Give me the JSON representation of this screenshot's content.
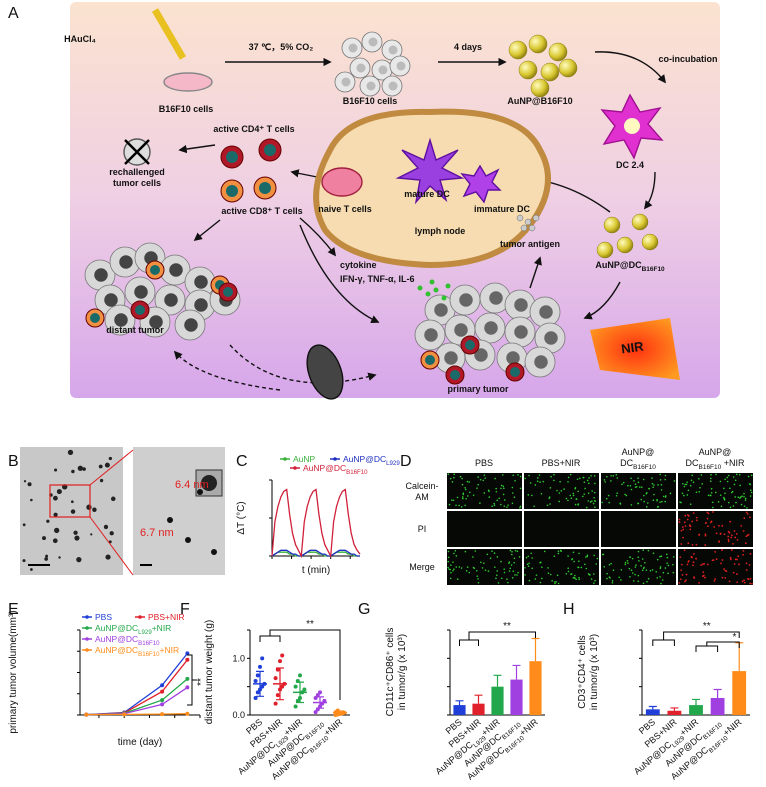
{
  "panel_labels": [
    "A",
    "B",
    "C",
    "D",
    "E",
    "F",
    "G",
    "H"
  ],
  "panel_a": {
    "labels": [
      "HAuCl₄",
      "B16F10 cells",
      "37 ℃，5% CO₂",
      "B16F10 cells",
      "4 days",
      "AuNP@B16F10",
      "co-incubation",
      "DC 2.4",
      "active CD4⁺ T cells",
      "rechallenged",
      "tumor cells",
      "active CD8⁺ T cells",
      "naive T cells",
      "mature DC",
      "immature DC",
      "lymph node",
      "tumor antigen",
      {
        "text": "AuNP@DC",
        "sub": "B16F10"
      },
      "cytokine",
      "IFN-γ, TNF-α, IL-6",
      "distant tumor",
      "primary tumor",
      "NIR"
    ]
  },
  "panel_b": {
    "labels": [
      "6.4 nm",
      "6.7 nm"
    ]
  },
  "panel_d": {
    "columns": [
      [
        "PBS"
      ],
      [
        "PBS+NIR"
      ],
      [
        "AuNP@",
        {
          "text": "DC",
          "sub": "B16F10"
        }
      ],
      [
        "AuNP@",
        {
          "text": "DC",
          "sub": "B16F10",
          "tail": " +NIR"
        }
      ]
    ],
    "rows": [
      [
        "Calcein-",
        "AM"
      ],
      [
        "PI"
      ],
      [
        "Merge"
      ]
    ]
  },
  "chart_data": [
    {
      "type": "line",
      "x_label": "t (min)",
      "y_label": "ΔT (°C)",
      "x": [
        0,
        3,
        6,
        9,
        12,
        15,
        18,
        21,
        24,
        27,
        30,
        33,
        36,
        39,
        42,
        45,
        48,
        51,
        54,
        57,
        60,
        63,
        66,
        69,
        72,
        75,
        78,
        81,
        84,
        87,
        90
      ],
      "xlim": [
        0,
        90
      ],
      "xticks": [
        0,
        20,
        40,
        60,
        80
      ],
      "ylim": [
        0,
        40
      ],
      "yticks": [
        0,
        20,
        40
      ],
      "series": [
        {
          "name": "AuNP",
          "color": "#3bb03b",
          "values": [
            0,
            1,
            2,
            2,
            2,
            2,
            1,
            1,
            0,
            0,
            0,
            1,
            2,
            2,
            2,
            2,
            1,
            1,
            0,
            0,
            0,
            1,
            2,
            2,
            2,
            2,
            1,
            1,
            0,
            0,
            0
          ]
        },
        {
          "name": {
            "text": "AuNP@DC",
            "sub": "L929"
          },
          "color": "#2030c0",
          "values": [
            0,
            1,
            2,
            3,
            3,
            3,
            2,
            1,
            1,
            0,
            0,
            1,
            2,
            3,
            3,
            3,
            2,
            1,
            1,
            0,
            0,
            1,
            2,
            3,
            3,
            3,
            2,
            1,
            1,
            0,
            0
          ]
        },
        {
          "name": {
            "text": "AuNP@DC",
            "sub": "B16F10"
          },
          "color": "#d0203a",
          "values": [
            0,
            18,
            26,
            31,
            34,
            35,
            22,
            12,
            6,
            3,
            0,
            18,
            26,
            31,
            34,
            35,
            22,
            12,
            6,
            3,
            0,
            18,
            26,
            31,
            34,
            35,
            22,
            12,
            6,
            3,
            1
          ]
        }
      ]
    },
    {
      "type": "line",
      "x_label": "time (day)",
      "y_label": "primary tumor volume(mm³)",
      "x": [
        11,
        14,
        17,
        19
      ],
      "xlim": [
        10.5,
        20
      ],
      "xticks": [
        12,
        14,
        16,
        18,
        20
      ],
      "ylim": [
        0,
        2000
      ],
      "yticks": [
        0,
        500,
        1000,
        1500,
        2000
      ],
      "markers": true,
      "series": [
        {
          "name": "PBS",
          "color": "#1f3fd8",
          "values": [
            10,
            60,
            700,
            1450
          ]
        },
        {
          "name": "PBS+NIR",
          "color": "#e0202a",
          "values": [
            10,
            50,
            550,
            1300
          ]
        },
        {
          "name": {
            "text": "AuNP@DC",
            "sub": "L929",
            "tail": "+NIR"
          },
          "color": "#22a84a",
          "values": [
            10,
            40,
            350,
            850
          ]
        },
        {
          "name": {
            "text": "AuNP@DC",
            "sub": "B16F10"
          },
          "color": "#a040e0",
          "values": [
            10,
            30,
            250,
            650
          ]
        },
        {
          "name": {
            "text": "AuNP@DC",
            "sub": "B16F10",
            "tail": "+NIR"
          },
          "color": "#ff8c1a",
          "values": [
            10,
            15,
            20,
            30
          ]
        }
      ],
      "annotations": [
        "**"
      ]
    },
    {
      "type": "dot",
      "y_label": "distant tumor weight (g)",
      "categories": [
        "PBS",
        "PBS+NIR",
        {
          "text": "AuNP@DC",
          "sub": "L929",
          "tail": "+NIR"
        },
        {
          "text": "AuNP@DC",
          "sub": "B16F10"
        },
        {
          "text": "AuNP@DC",
          "sub": "B16F10",
          "tail": "+NIR"
        }
      ],
      "colors": [
        "#1f3fd8",
        "#e0202a",
        "#22a84a",
        "#a040e0",
        "#ff8c1a"
      ],
      "values": [
        0.55,
        0.55,
        0.4,
        0.22,
        0.04
      ],
      "errors": [
        0.22,
        0.28,
        0.18,
        0.1,
        0.03
      ],
      "points": [
        [
          0.3,
          0.4,
          0.45,
          0.5,
          0.55,
          0.6,
          0.7,
          0.85,
          1.0
        ],
        [
          0.2,
          0.35,
          0.45,
          0.5,
          0.55,
          0.65,
          0.8,
          0.95,
          1.05
        ],
        [
          0.15,
          0.25,
          0.3,
          0.4,
          0.45,
          0.5,
          0.6,
          0.7
        ],
        [
          0.05,
          0.1,
          0.15,
          0.2,
          0.25,
          0.3,
          0.35,
          0.4
        ],
        [
          0.0,
          0.01,
          0.02,
          0.03,
          0.04,
          0.05,
          0.08
        ]
      ],
      "ylim": [
        0,
        1.5
      ],
      "yticks": [
        {
          "value": 0,
          "label": "0.0"
        },
        0.5,
        {
          "value": 1,
          "label": "1.0"
        },
        1.5
      ],
      "annotations": [
        "**"
      ]
    },
    {
      "type": "bar",
      "y_label": [
        "CD11c⁺CD86⁺ cells",
        "in tumor/g (x 10³)"
      ],
      "categories": [
        "PBS",
        "PBS+NIR",
        {
          "text": "AuNP@DC",
          "sub": "L929",
          "tail": "+NIR"
        },
        {
          "text": "AuNP@DC",
          "sub": "B16F10"
        },
        {
          "text": "AuNP@DC",
          "sub": "B16F10",
          "tail": "+NIR"
        }
      ],
      "colors": [
        "#1f3fd8",
        "#e0202a",
        "#22a84a",
        "#a040e0",
        "#ff8c1a"
      ],
      "values": [
        3.5,
        4,
        10,
        12.5,
        19
      ],
      "errors": [
        1.5,
        3,
        4,
        5,
        8
      ],
      "ylim": [
        0,
        30
      ],
      "yticks": [
        0,
        10,
        20,
        30
      ],
      "annotations": [
        "**"
      ]
    },
    {
      "type": "bar",
      "y_label": [
        "CD3⁺CD4⁺ cells",
        "in tumor/g (x 10³)"
      ],
      "categories": [
        "PBS",
        "PBS+NIR",
        {
          "text": "AuNP@DC",
          "sub": "L929",
          "tail": "+NIR"
        },
        {
          "text": "AuNP@DC",
          "sub": "B16F10"
        },
        {
          "text": "AuNP@DC",
          "sub": "B16F10",
          "tail": "+NIR"
        }
      ],
      "colors": [
        "#1f3fd8",
        "#e0202a",
        "#22a84a",
        "#a040e0",
        "#ff8c1a"
      ],
      "values": [
        2,
        1.5,
        3.5,
        6,
        15.5
      ],
      "errors": [
        1,
        1,
        2,
        3,
        10
      ],
      "ylim": [
        0,
        30
      ],
      "yticks": [
        0,
        10,
        20,
        30
      ],
      "annotations": [
        "**",
        "*"
      ]
    }
  ]
}
